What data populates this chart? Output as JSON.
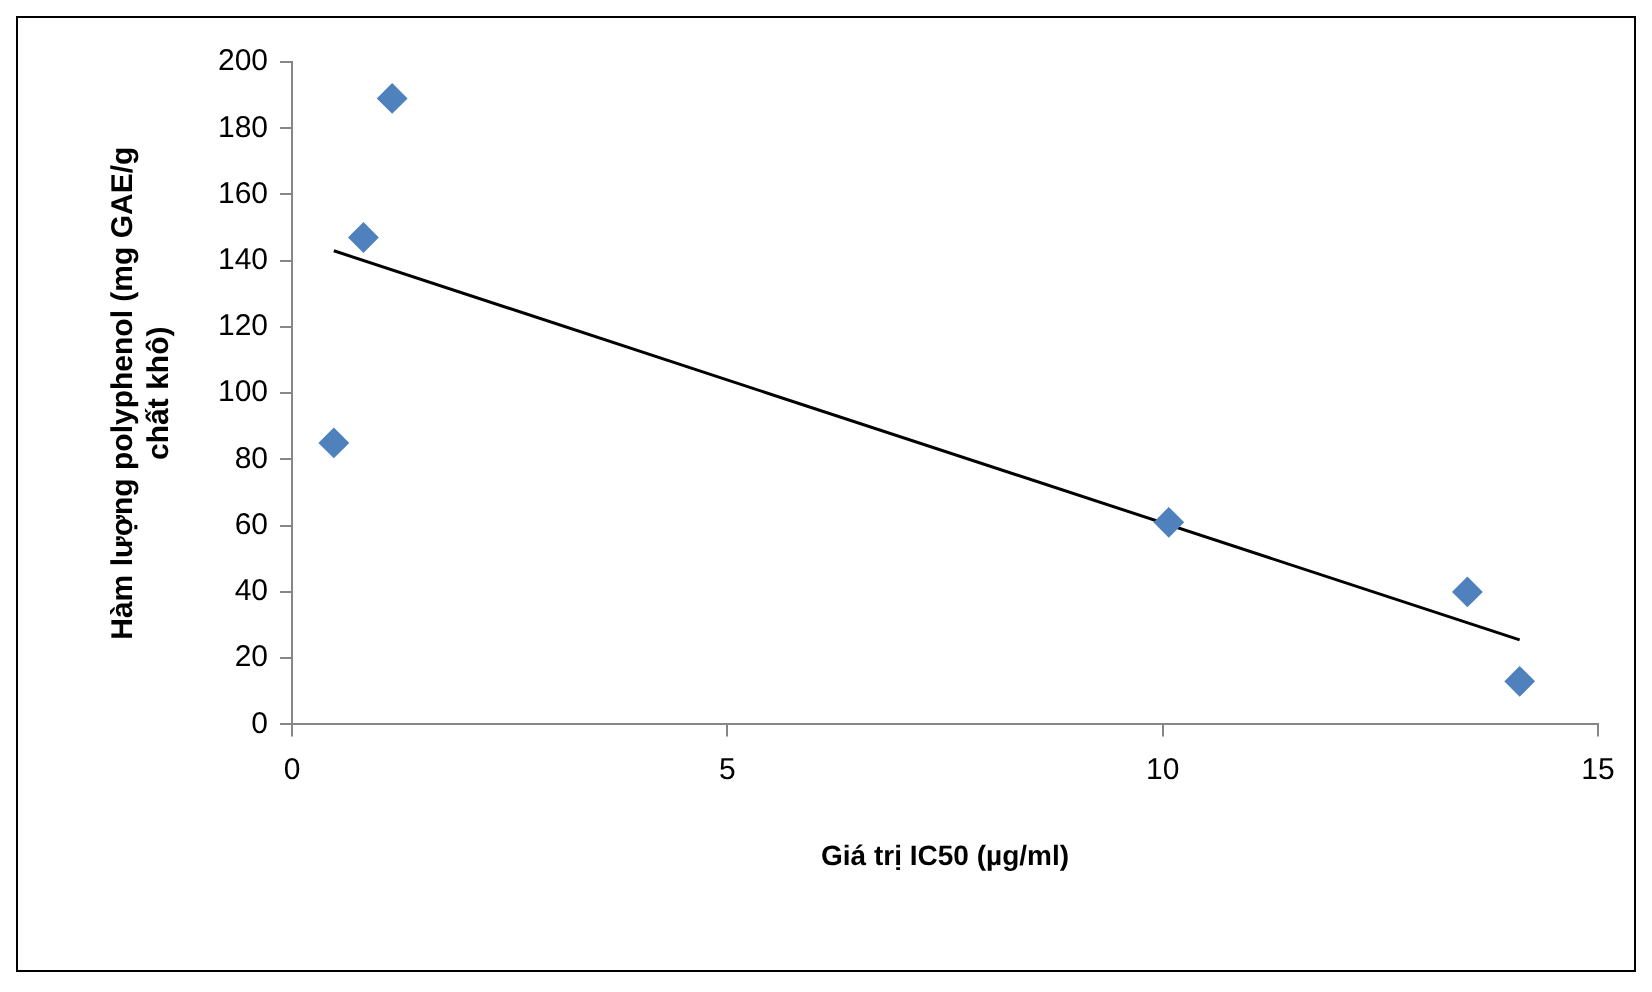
{
  "chart_data": {
    "type": "scatter",
    "xlabel": "Giá trị IC50 (µg/ml)",
    "ylabel": "Hàm lượng polyphenol (mg GAE/g chất khô)",
    "xlim": [
      0,
      15
    ],
    "xticks": [
      0,
      5,
      10,
      15
    ],
    "ylim": [
      0,
      200
    ],
    "yticks": [
      0,
      20,
      40,
      60,
      80,
      100,
      120,
      140,
      160,
      180,
      200
    ],
    "grid": false,
    "legend": false,
    "marker": "diamond",
    "series": [
      {
        "type": "scatter",
        "color": "#4f81bd",
        "x": [
          0.48,
          0.82,
          1.15,
          10.07,
          13.5,
          14.1
        ],
        "values": [
          85,
          147,
          189,
          61,
          40,
          13
        ]
      },
      {
        "type": "line",
        "color": "#000000",
        "x": [
          0.48,
          14.1
        ],
        "values": [
          143,
          25.5
        ],
        "marker": "none",
        "line_style": "solid"
      }
    ]
  }
}
